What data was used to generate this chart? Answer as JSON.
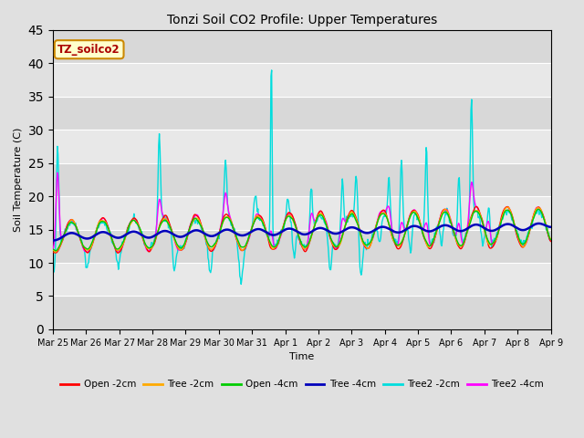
{
  "title": "Tonzi Soil CO2 Profile: Upper Temperatures",
  "ylabel": "Soil Temperature (C)",
  "xlabel": "Time",
  "annotation": "TZ_soilco2",
  "ylim": [
    0,
    45
  ],
  "yticks": [
    0,
    5,
    10,
    15,
    20,
    25,
    30,
    35,
    40,
    45
  ],
  "xtick_labels": [
    "Mar 25",
    "Mar 26",
    "Mar 27",
    "Mar 28",
    "Mar 29",
    "Mar 30",
    "Mar 31",
    "Apr 1",
    "Apr 2",
    "Apr 3",
    "Apr 4",
    "Apr 5",
    "Apr 6",
    "Apr 7",
    "Apr 8",
    "Apr 9"
  ],
  "bg_color": "#e0e0e0",
  "plot_bg_color": "#e0e0e0",
  "grid_color": "#ffffff",
  "series": {
    "Open -2cm": {
      "color": "#ff0000",
      "lw": 1.0
    },
    "Tree -2cm": {
      "color": "#ffaa00",
      "lw": 1.0
    },
    "Open -4cm": {
      "color": "#00cc00",
      "lw": 1.0
    },
    "Tree -4cm": {
      "color": "#0000bb",
      "lw": 1.8
    },
    "Tree2 -2cm": {
      "color": "#00dddd",
      "lw": 1.0
    },
    "Tree2 -4cm": {
      "color": "#ff00ff",
      "lw": 1.0
    }
  },
  "n_days": 16,
  "samples_per_day": 48,
  "figsize": [
    6.4,
    4.8
  ],
  "dpi": 100
}
